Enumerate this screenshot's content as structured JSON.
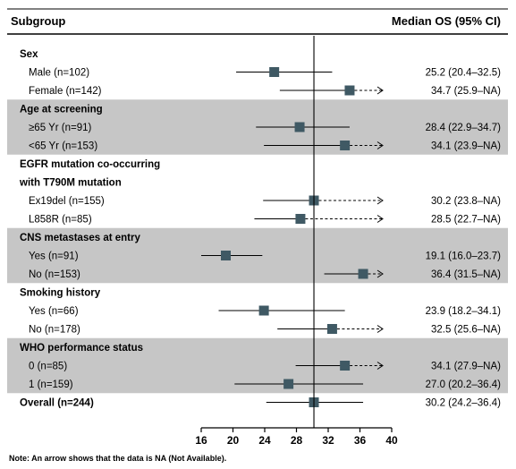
{
  "header": {
    "subgroup_label": "Subgroup",
    "os_label": "Median OS (95% CI)"
  },
  "note": "Note: An arrow shows that the data is NA (Not Available).",
  "colors": {
    "marker": "#3f5964",
    "band": "#c6c6c6",
    "line": "#000000"
  },
  "chart_data": {
    "type": "forest",
    "title": "",
    "xlabel": "",
    "xlim": [
      16,
      40
    ],
    "xticks": [
      16,
      20,
      24,
      28,
      32,
      36,
      40
    ],
    "reference_line": 30.2,
    "groups": [
      {
        "name": "Sex",
        "shaded": false,
        "rows": [
          {
            "label": "Male (n=102)",
            "estimate": 25.2,
            "lower": 20.4,
            "upper": 32.5,
            "upper_na": false,
            "text": "25.2 (20.4–32.5)"
          },
          {
            "label": "Female (n=142)",
            "estimate": 34.7,
            "lower": 25.9,
            "upper": null,
            "upper_na": true,
            "text": "34.7 (25.9–NA)"
          }
        ]
      },
      {
        "name": "Age at screening",
        "shaded": true,
        "rows": [
          {
            "label": "≥65 Yr (n=91)",
            "estimate": 28.4,
            "lower": 22.9,
            "upper": 34.7,
            "upper_na": false,
            "text": "28.4 (22.9–34.7)"
          },
          {
            "label": "<65 Yr (n=153)",
            "estimate": 34.1,
            "lower": 23.9,
            "upper": null,
            "upper_na": true,
            "text": "34.1 (23.9–NA)"
          }
        ]
      },
      {
        "name": "EGFR mutation co-occurring",
        "name_line2": "with T790M mutation",
        "shaded": false,
        "rows": [
          {
            "label": "Ex19del (n=155)",
            "estimate": 30.2,
            "lower": 23.8,
            "upper": null,
            "upper_na": true,
            "text": "30.2 (23.8–NA)"
          },
          {
            "label": "L858R (n=85)",
            "estimate": 28.5,
            "lower": 22.7,
            "upper": null,
            "upper_na": true,
            "text": "28.5 (22.7–NA)"
          }
        ]
      },
      {
        "name": "CNS metastases at entry",
        "shaded": true,
        "rows": [
          {
            "label": "Yes (n=91)",
            "estimate": 19.1,
            "lower": 16.0,
            "upper": 23.7,
            "upper_na": false,
            "text": "19.1 (16.0–23.7)"
          },
          {
            "label": "No (n=153)",
            "estimate": 36.4,
            "lower": 31.5,
            "upper": null,
            "upper_na": true,
            "text": "36.4 (31.5–NA)"
          }
        ]
      },
      {
        "name": "Smoking history",
        "shaded": false,
        "rows": [
          {
            "label": "Yes (n=66)",
            "estimate": 23.9,
            "lower": 18.2,
            "upper": 34.1,
            "upper_na": false,
            "text": "23.9 (18.2–34.1)"
          },
          {
            "label": "No (n=178)",
            "estimate": 32.5,
            "lower": 25.6,
            "upper": null,
            "upper_na": true,
            "text": "32.5 (25.6–NA)"
          }
        ]
      },
      {
        "name": "WHO performance status",
        "shaded": true,
        "rows": [
          {
            "label": "0 (n=85)",
            "estimate": 34.1,
            "lower": 27.9,
            "upper": null,
            "upper_na": true,
            "text": "34.1 (27.9–NA)"
          },
          {
            "label": "1 (n=159)",
            "estimate": 27.0,
            "lower": 20.2,
            "upper": 36.4,
            "upper_na": false,
            "text": "27.0 (20.2–36.4)"
          }
        ]
      }
    ],
    "overall": {
      "label": "Overall (n=244)",
      "estimate": 30.2,
      "lower": 24.2,
      "upper": 36.4,
      "upper_na": false,
      "text": "30.2 (24.2–36.4)"
    }
  }
}
